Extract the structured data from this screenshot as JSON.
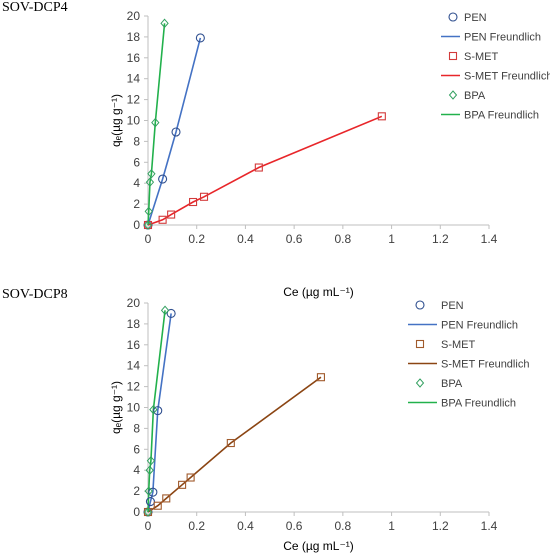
{
  "colors": {
    "pen": "#2f4f8f",
    "pen_fit": "#4472c4",
    "bpa": "#33a060",
    "bpa_fit": "#22b14c",
    "smet1": "#d23a3a",
    "smet1_fit": "#e8262a",
    "smet2": "#a05a2c",
    "smet2_fit": "#8b4513",
    "axis": "#bfbfbf"
  },
  "chart_data": [
    {
      "type": "scatter",
      "title": "SOV-DCP4",
      "xlabel": "Ce (µg mL⁻¹)",
      "ylabel": "qₑ(µg g⁻¹)",
      "xlim": [
        0,
        1.4
      ],
      "ylim": [
        0,
        20
      ],
      "x_ticks": [
        "0",
        "0.2",
        "0.4",
        "0.6",
        "0.8",
        "1",
        "1.2",
        "1.4"
      ],
      "y_ticks": [
        "0",
        "2",
        "4",
        "6",
        "8",
        "10",
        "12",
        "14",
        "16",
        "18",
        "20"
      ],
      "legend_position": "right",
      "series": [
        {
          "name": "PEN",
          "marker": "circle",
          "color_key": "pen",
          "x": [
            0,
            0.06,
            0.115,
            0.215
          ],
          "y": [
            0,
            4.4,
            8.9,
            17.9
          ]
        },
        {
          "name": "PEN Freundlich",
          "marker": "line",
          "color_key": "pen_fit",
          "x": [
            0,
            0.06,
            0.115,
            0.215
          ],
          "y": [
            0,
            4.4,
            8.9,
            17.9
          ]
        },
        {
          "name": "S-MET",
          "marker": "square",
          "color_key": "smet1",
          "x": [
            0,
            0.06,
            0.095,
            0.185,
            0.23,
            0.455,
            0.96
          ],
          "y": [
            0,
            0.5,
            1.0,
            2.2,
            2.7,
            5.5,
            10.4
          ]
        },
        {
          "name": "S-MET Freundlich",
          "marker": "line",
          "color_key": "smet1_fit",
          "x": [
            0,
            0.06,
            0.095,
            0.185,
            0.23,
            0.455,
            0.96
          ],
          "y": [
            0,
            0.5,
            1.0,
            2.2,
            2.7,
            5.5,
            10.4
          ]
        },
        {
          "name": "BPA",
          "marker": "diamond",
          "color_key": "bpa",
          "x": [
            0,
            0.003,
            0.008,
            0.014,
            0.03,
            0.068
          ],
          "y": [
            0,
            1.3,
            4.1,
            4.9,
            9.8,
            19.3
          ]
        },
        {
          "name": "BPA Freundlich",
          "marker": "line",
          "color_key": "bpa_fit",
          "x": [
            0,
            0.003,
            0.008,
            0.014,
            0.03,
            0.068
          ],
          "y": [
            0,
            1.3,
            4.1,
            4.9,
            9.8,
            19.3
          ]
        }
      ]
    },
    {
      "type": "scatter",
      "title": "SOV-DCP8",
      "xlabel": "Ce (µg mL⁻¹)",
      "ylabel": "qₑ(µg g⁻¹)",
      "xlim": [
        0,
        1.4
      ],
      "ylim": [
        0,
        20
      ],
      "x_ticks": [
        "0",
        "0.2",
        "0.4",
        "0.6",
        "0.8",
        "1",
        "1.2",
        "1.4"
      ],
      "y_ticks": [
        "0",
        "2",
        "4",
        "6",
        "8",
        "10",
        "12",
        "14",
        "16",
        "18",
        "20"
      ],
      "legend_position": "right",
      "series": [
        {
          "name": "PEN",
          "marker": "circle",
          "color_key": "pen",
          "x": [
            0,
            0.01,
            0.02,
            0.04,
            0.095
          ],
          "y": [
            0,
            1.0,
            1.9,
            9.7,
            19.0
          ]
        },
        {
          "name": "PEN Freundlich",
          "marker": "line",
          "color_key": "pen_fit",
          "x": [
            0,
            0.01,
            0.02,
            0.04,
            0.095
          ],
          "y": [
            0,
            1.0,
            1.9,
            9.7,
            19.0
          ]
        },
        {
          "name": "S-MET",
          "marker": "square",
          "color_key": "smet2",
          "x": [
            0,
            0.04,
            0.075,
            0.14,
            0.175,
            0.34,
            0.71
          ],
          "y": [
            0,
            0.6,
            1.3,
            2.6,
            3.3,
            6.6,
            12.9
          ]
        },
        {
          "name": "S-MET Freundlich",
          "marker": "line",
          "color_key": "smet2_fit",
          "x": [
            0,
            0.04,
            0.075,
            0.14,
            0.175,
            0.34,
            0.71
          ],
          "y": [
            0,
            0.6,
            1.3,
            2.6,
            3.3,
            6.6,
            12.9
          ]
        },
        {
          "name": "BPA",
          "marker": "diamond",
          "color_key": "bpa",
          "x": [
            0,
            0.003,
            0.007,
            0.012,
            0.022,
            0.07
          ],
          "y": [
            0,
            2.0,
            4.0,
            4.9,
            9.8,
            19.3
          ]
        },
        {
          "name": "BPA Freundlich",
          "marker": "line",
          "color_key": "bpa_fit",
          "x": [
            0,
            0.003,
            0.007,
            0.012,
            0.022,
            0.07
          ],
          "y": [
            0,
            2.0,
            4.0,
            4.9,
            9.8,
            19.3
          ]
        }
      ]
    }
  ]
}
